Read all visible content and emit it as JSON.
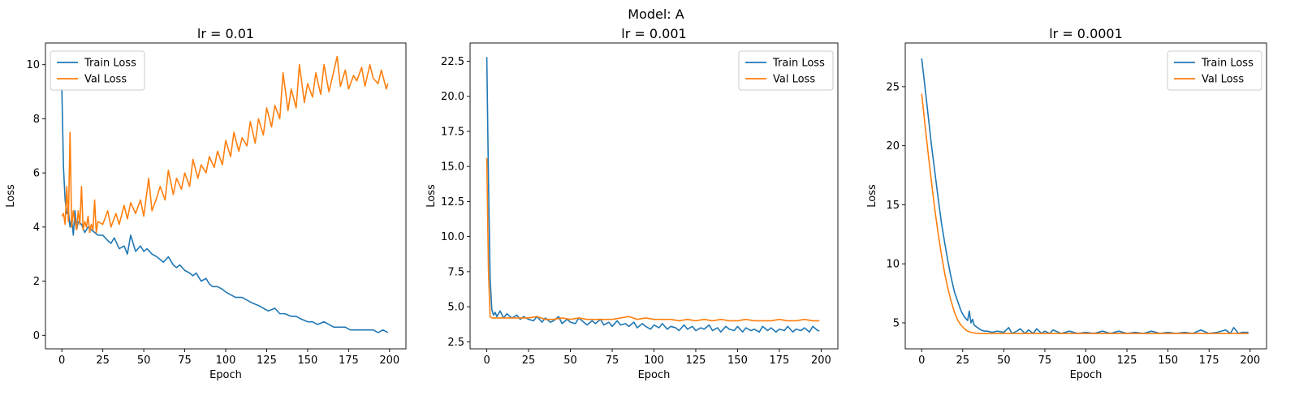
{
  "figure": {
    "suptitle": "Model: A"
  },
  "chart_data": [
    {
      "type": "line",
      "title": "lr = 0.01",
      "xlabel": "Epoch",
      "ylabel": "Loss",
      "xlim": [
        -10,
        210
      ],
      "ylim": [
        -0.5,
        10.8
      ],
      "xticks": [
        0,
        25,
        50,
        75,
        100,
        125,
        150,
        175,
        200
      ],
      "yticks": [
        0,
        2,
        4,
        6,
        8,
        10
      ],
      "legend": "top-left",
      "grid": false,
      "series": [
        {
          "name": "Train Loss",
          "color": "#1f77b4",
          "x": [
            0,
            1,
            2,
            3,
            4,
            5,
            6,
            7,
            8,
            9,
            10,
            12,
            14,
            16,
            18,
            20,
            22,
            25,
            28,
            30,
            32,
            35,
            38,
            40,
            42,
            45,
            48,
            50,
            52,
            55,
            58,
            60,
            62,
            65,
            68,
            70,
            72,
            75,
            78,
            80,
            82,
            85,
            88,
            90,
            92,
            95,
            98,
            100,
            103,
            106,
            110,
            113,
            116,
            120,
            123,
            126,
            130,
            133,
            136,
            140,
            143,
            146,
            150,
            153,
            156,
            160,
            163,
            166,
            170,
            173,
            176,
            180,
            183,
            186,
            190,
            193,
            196,
            199
          ],
          "y": [
            9.1,
            6.2,
            5.0,
            4.5,
            4.6,
            4.0,
            4.3,
            3.7,
            4.6,
            3.9,
            4.2,
            4.1,
            3.8,
            4.0,
            3.9,
            3.8,
            3.7,
            3.7,
            3.5,
            3.4,
            3.6,
            3.2,
            3.3,
            3.0,
            3.7,
            3.1,
            3.3,
            3.1,
            3.2,
            3.0,
            2.9,
            2.8,
            2.7,
            2.9,
            2.6,
            2.5,
            2.6,
            2.4,
            2.3,
            2.2,
            2.3,
            2.0,
            2.1,
            1.9,
            1.8,
            1.8,
            1.7,
            1.6,
            1.5,
            1.4,
            1.4,
            1.3,
            1.2,
            1.1,
            1.0,
            0.9,
            1.0,
            0.8,
            0.8,
            0.7,
            0.7,
            0.6,
            0.5,
            0.5,
            0.4,
            0.5,
            0.4,
            0.3,
            0.3,
            0.3,
            0.2,
            0.2,
            0.2,
            0.2,
            0.2,
            0.1,
            0.2,
            0.1
          ]
        },
        {
          "name": "Val Loss",
          "color": "#ff7f0e",
          "x": [
            0,
            1,
            2,
            3,
            4,
            5,
            6,
            7,
            8,
            9,
            10,
            11,
            12,
            13,
            14,
            15,
            16,
            17,
            18,
            19,
            20,
            21,
            22,
            25,
            28,
            30,
            33,
            35,
            38,
            40,
            42,
            45,
            48,
            50,
            53,
            55,
            58,
            60,
            63,
            65,
            68,
            70,
            73,
            75,
            78,
            80,
            83,
            85,
            88,
            90,
            93,
            95,
            98,
            100,
            103,
            105,
            108,
            110,
            113,
            115,
            118,
            120,
            123,
            125,
            128,
            130,
            133,
            135,
            138,
            140,
            143,
            145,
            148,
            150,
            153,
            155,
            158,
            160,
            163,
            165,
            168,
            170,
            173,
            175,
            178,
            180,
            183,
            185,
            188,
            190,
            193,
            195,
            198,
            199
          ],
          "y": [
            4.4,
            4.5,
            4.1,
            5.5,
            4.2,
            7.5,
            4.0,
            4.6,
            4.2,
            3.9,
            4.6,
            4.1,
            5.5,
            3.9,
            4.2,
            4.0,
            4.4,
            3.8,
            4.1,
            3.9,
            5.0,
            3.8,
            4.2,
            4.1,
            4.6,
            4.0,
            4.5,
            4.1,
            4.8,
            4.3,
            4.9,
            4.5,
            5.0,
            4.4,
            5.8,
            4.6,
            5.1,
            5.5,
            5.0,
            6.1,
            5.2,
            5.8,
            5.4,
            6.0,
            5.5,
            6.5,
            5.8,
            6.3,
            6.0,
            6.6,
            6.2,
            6.8,
            6.3,
            7.2,
            6.6,
            7.5,
            6.8,
            7.3,
            7.0,
            7.9,
            7.1,
            8.0,
            7.4,
            8.4,
            7.7,
            8.5,
            8.0,
            9.7,
            8.3,
            9.1,
            8.4,
            10.0,
            8.6,
            9.3,
            8.8,
            9.7,
            8.9,
            10.0,
            9.0,
            9.5,
            10.3,
            9.2,
            9.8,
            9.1,
            9.6,
            9.4,
            9.9,
            9.2,
            10.0,
            9.5,
            9.3,
            9.8,
            9.1,
            9.3
          ]
        }
      ]
    },
    {
      "type": "line",
      "title": "lr = 0.001",
      "xlabel": "Epoch",
      "ylabel": "Loss",
      "xlim": [
        -10,
        210
      ],
      "ylim": [
        2.0,
        23.8
      ],
      "xticks": [
        0,
        25,
        50,
        75,
        100,
        125,
        150,
        175,
        200
      ],
      "yticks": [
        2.5,
        5.0,
        7.5,
        10.0,
        12.5,
        15.0,
        17.5,
        20.0,
        22.5
      ],
      "legend": "top-right",
      "grid": false,
      "series": [
        {
          "name": "Train Loss",
          "color": "#1f77b4",
          "x": [
            0,
            1,
            2,
            3,
            4,
            5,
            6,
            8,
            10,
            12,
            15,
            18,
            20,
            22,
            25,
            28,
            30,
            33,
            35,
            38,
            40,
            43,
            45,
            48,
            50,
            53,
            55,
            58,
            60,
            63,
            65,
            68,
            70,
            73,
            75,
            78,
            80,
            83,
            85,
            88,
            90,
            93,
            95,
            98,
            100,
            103,
            105,
            108,
            110,
            113,
            115,
            118,
            120,
            123,
            125,
            128,
            130,
            133,
            135,
            138,
            140,
            143,
            145,
            148,
            150,
            153,
            155,
            158,
            160,
            163,
            165,
            168,
            170,
            173,
            175,
            178,
            180,
            183,
            185,
            188,
            190,
            193,
            195,
            198,
            199
          ],
          "y": [
            22.8,
            14.0,
            7.0,
            4.8,
            4.4,
            4.6,
            4.3,
            4.7,
            4.2,
            4.5,
            4.2,
            4.4,
            4.1,
            4.3,
            4.1,
            4.0,
            4.3,
            3.9,
            4.2,
            3.9,
            4.0,
            4.3,
            3.8,
            4.1,
            3.9,
            3.8,
            4.2,
            3.9,
            3.7,
            4.0,
            3.8,
            4.1,
            3.7,
            3.9,
            3.6,
            4.0,
            3.7,
            3.8,
            3.6,
            3.9,
            3.5,
            3.8,
            3.6,
            3.4,
            3.7,
            3.5,
            3.8,
            3.4,
            3.6,
            3.5,
            3.3,
            3.7,
            3.4,
            3.6,
            3.3,
            3.5,
            3.4,
            3.7,
            3.3,
            3.5,
            3.2,
            3.6,
            3.4,
            3.3,
            3.6,
            3.2,
            3.5,
            3.3,
            3.4,
            3.2,
            3.6,
            3.3,
            3.5,
            3.2,
            3.4,
            3.3,
            3.6,
            3.2,
            3.4,
            3.3,
            3.5,
            3.2,
            3.6,
            3.3,
            3.3
          ]
        },
        {
          "name": "Val Loss",
          "color": "#ff7f0e",
          "x": [
            0,
            1,
            2,
            3,
            5,
            8,
            10,
            15,
            20,
            25,
            30,
            35,
            40,
            45,
            50,
            55,
            60,
            65,
            70,
            75,
            80,
            85,
            90,
            95,
            100,
            105,
            110,
            115,
            120,
            125,
            130,
            135,
            140,
            145,
            150,
            155,
            160,
            165,
            170,
            175,
            180,
            185,
            190,
            195,
            199
          ],
          "y": [
            15.6,
            7.5,
            4.3,
            4.2,
            4.2,
            4.2,
            4.2,
            4.2,
            4.2,
            4.2,
            4.3,
            4.1,
            4.1,
            4.2,
            4.1,
            4.2,
            4.1,
            4.1,
            4.1,
            4.1,
            4.2,
            4.3,
            4.1,
            4.2,
            4.1,
            4.1,
            4.1,
            4.0,
            4.1,
            4.0,
            4.1,
            4.0,
            4.1,
            4.0,
            4.0,
            4.1,
            4.0,
            4.0,
            4.0,
            4.1,
            4.0,
            4.0,
            4.1,
            4.0,
            4.0
          ]
        }
      ]
    },
    {
      "type": "line",
      "title": "lr = 0.0001",
      "xlabel": "Epoch",
      "ylabel": "Loss",
      "xlim": [
        -10,
        210
      ],
      "ylim": [
        2.8,
        28.7
      ],
      "xticks": [
        0,
        25,
        50,
        75,
        100,
        125,
        150,
        175,
        200
      ],
      "yticks": [
        5,
        10,
        15,
        20,
        25
      ],
      "legend": "top-right",
      "grid": false,
      "series": [
        {
          "name": "Train Loss",
          "color": "#1f77b4",
          "x": [
            0,
            2,
            4,
            6,
            8,
            10,
            12,
            14,
            16,
            18,
            20,
            22,
            24,
            26,
            28,
            29,
            30,
            31,
            32,
            34,
            36,
            38,
            40,
            43,
            46,
            50,
            53,
            55,
            58,
            60,
            63,
            65,
            68,
            70,
            73,
            75,
            78,
            80,
            85,
            90,
            95,
            100,
            105,
            110,
            115,
            120,
            125,
            130,
            135,
            140,
            145,
            150,
            155,
            160,
            165,
            170,
            175,
            180,
            185,
            188,
            190,
            193,
            195,
            199
          ],
          "y": [
            27.4,
            25.0,
            22.5,
            20.0,
            17.8,
            15.6,
            13.5,
            11.8,
            10.2,
            8.8,
            7.6,
            6.8,
            6.0,
            5.5,
            5.2,
            6.0,
            5.0,
            5.3,
            4.8,
            4.6,
            4.4,
            4.3,
            4.3,
            4.2,
            4.3,
            4.2,
            4.6,
            4.1,
            4.3,
            4.5,
            4.1,
            4.4,
            4.1,
            4.5,
            4.1,
            4.3,
            4.1,
            4.4,
            4.1,
            4.3,
            4.1,
            4.2,
            4.1,
            4.3,
            4.1,
            4.3,
            4.1,
            4.2,
            4.1,
            4.3,
            4.1,
            4.2,
            4.1,
            4.2,
            4.1,
            4.4,
            4.1,
            4.2,
            4.4,
            4.1,
            4.6,
            4.1,
            4.2,
            4.2
          ]
        },
        {
          "name": "Val Loss",
          "color": "#ff7f0e",
          "x": [
            0,
            2,
            4,
            6,
            8,
            10,
            12,
            14,
            16,
            18,
            20,
            22,
            24,
            26,
            28,
            30,
            32,
            34,
            36,
            38,
            40,
            45,
            50,
            60,
            70,
            80,
            90,
            100,
            110,
            120,
            130,
            140,
            150,
            160,
            170,
            180,
            190,
            199
          ],
          "y": [
            24.4,
            21.8,
            19.3,
            16.9,
            14.6,
            12.6,
            10.8,
            9.2,
            7.9,
            6.8,
            5.9,
            5.2,
            4.8,
            4.5,
            4.3,
            4.2,
            4.15,
            4.1,
            4.1,
            4.1,
            4.1,
            4.1,
            4.1,
            4.1,
            4.1,
            4.1,
            4.1,
            4.1,
            4.1,
            4.1,
            4.1,
            4.1,
            4.1,
            4.1,
            4.1,
            4.1,
            4.1,
            4.1
          ]
        }
      ]
    }
  ]
}
